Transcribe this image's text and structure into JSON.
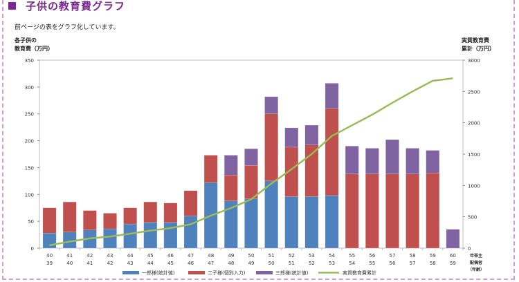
{
  "page": {
    "heading": "子供の教育費グラフ",
    "intro": "前ページの表をグラフ化しています。",
    "left_axis_title": [
      "各子供の",
      "教育費（万円）"
    ],
    "right_axis_title": [
      "実質教育費",
      "累計（万円）"
    ]
  },
  "colors": {
    "accent": "#7a2a8e",
    "frame": "#d59ad8",
    "series_1": "#4f81bd",
    "series_2": "#c0504d",
    "series_3": "#8064a2",
    "series_line": "#9bbb59"
  },
  "chart_data": {
    "type": "bar",
    "stacked": true,
    "categories_top": [
      "40",
      "41",
      "42",
      "43",
      "44",
      "45",
      "46",
      "47",
      "48",
      "49",
      "50",
      "51",
      "52",
      "53",
      "54",
      "55",
      "56",
      "57",
      "58",
      "59",
      "60"
    ],
    "categories_bottom": [
      "39",
      "40",
      "41",
      "42",
      "43",
      "44",
      "45",
      "46",
      "47",
      "48",
      "49",
      "50",
      "51",
      "52",
      "53",
      "54",
      "55",
      "56",
      "57",
      "58",
      "59"
    ],
    "x_axis_title": [
      "世帯主",
      "配偶者",
      "（年齢）"
    ],
    "ylim": [
      0,
      350
    ],
    "yticks": [
      0,
      50,
      100,
      150,
      200,
      250,
      300,
      350
    ],
    "y2lim": [
      0,
      3000
    ],
    "y2ticks": [
      0,
      500,
      1000,
      1500,
      2000,
      2500,
      3000
    ],
    "grid": false,
    "legend_position": "bottom",
    "series": [
      {
        "name": "一郎様(統計値)",
        "axis": "left",
        "kind": "bar",
        "values": [
          28,
          30,
          34,
          36,
          45,
          48,
          48,
          60,
          122,
          88,
          92,
          125,
          96,
          96,
          98,
          0,
          0,
          0,
          0,
          0,
          0
        ]
      },
      {
        "name": "二子様(個別入力)",
        "axis": "left",
        "kind": "bar",
        "values": [
          47,
          56,
          36,
          29,
          30,
          38,
          36,
          47,
          51,
          48,
          62,
          125,
          92,
          96,
          162,
          138,
          138,
          138,
          138,
          140,
          0
        ]
      },
      {
        "name": "三郎様(統計値)",
        "axis": "left",
        "kind": "bar",
        "values": [
          0,
          0,
          0,
          0,
          0,
          0,
          0,
          0,
          0,
          37,
          31,
          32,
          36,
          37,
          47,
          52,
          48,
          64,
          48,
          42,
          35
        ]
      },
      {
        "name": "実質教育費累計",
        "axis": "right",
        "kind": "line",
        "values": [
          45,
          105,
          155,
          185,
          230,
          280,
          320,
          380,
          520,
          640,
          780,
          1030,
          1260,
          1500,
          1790,
          1960,
          2130,
          2320,
          2500,
          2670,
          2710
        ]
      }
    ]
  }
}
